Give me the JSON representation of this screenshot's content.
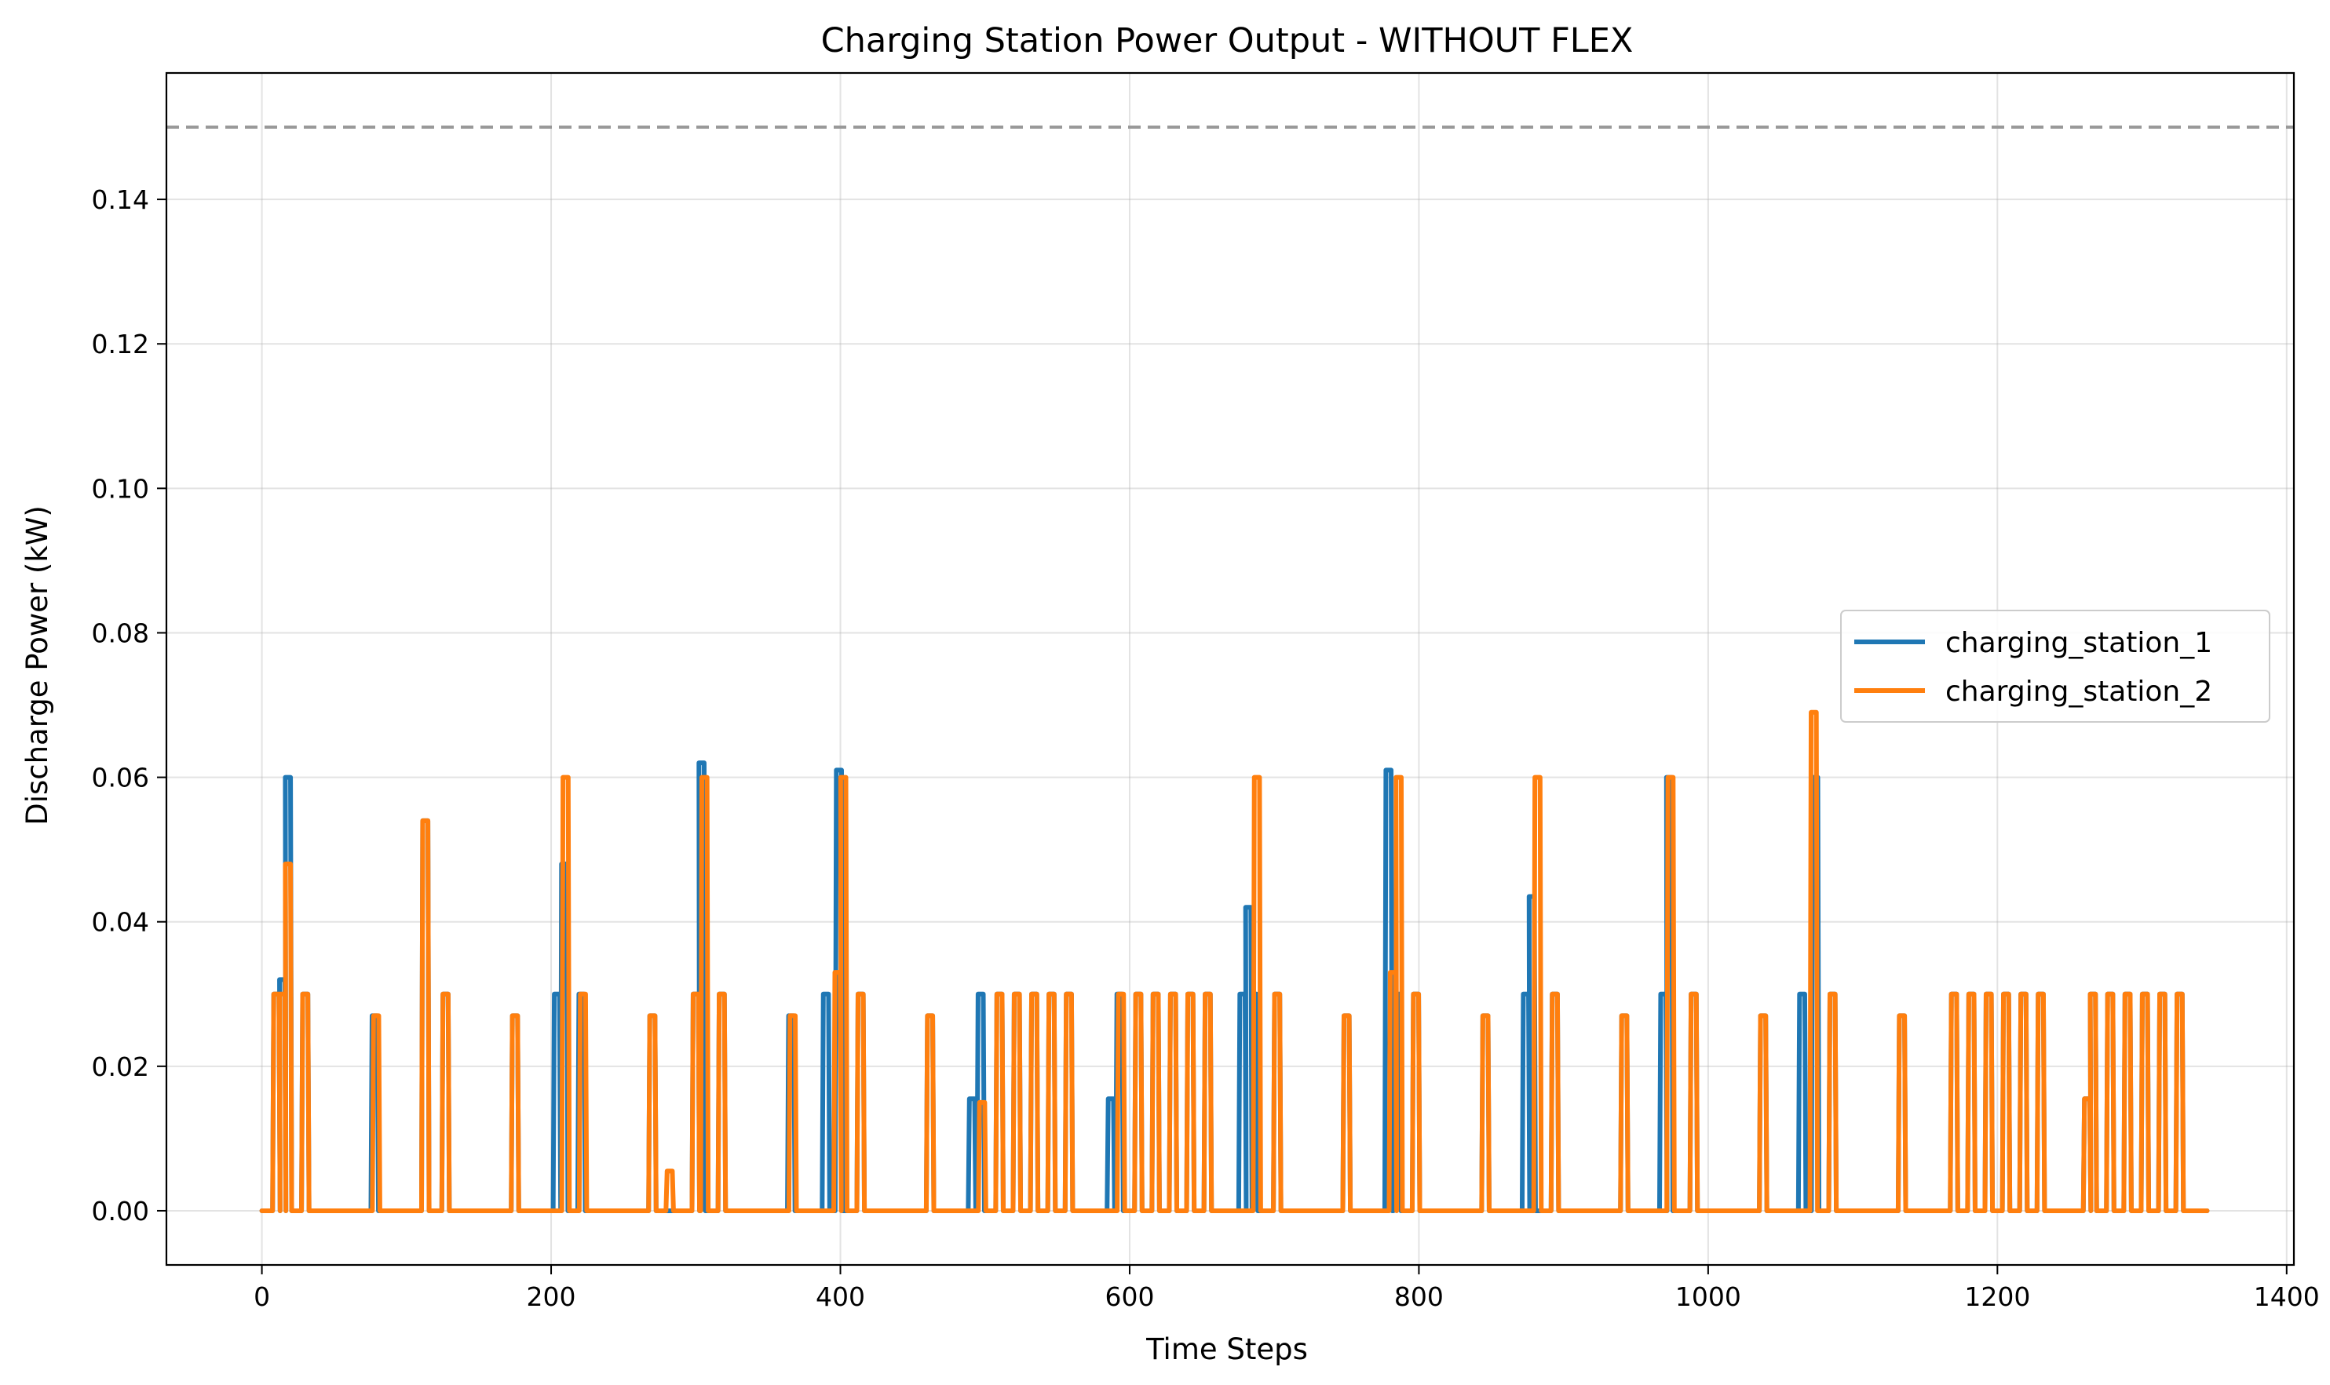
{
  "chart_data": {
    "type": "line",
    "title": "Charging Station Power Output - WITHOUT FLEX",
    "xlabel": "Time Steps",
    "ylabel": "Discharge Power (kW)",
    "xlim": [
      -66,
      1405
    ],
    "ylim": [
      -0.0075,
      0.1575
    ],
    "xticks": [
      0,
      200,
      400,
      600,
      800,
      1000,
      1200,
      1400
    ],
    "yticks": [
      0.0,
      0.02,
      0.04,
      0.06,
      0.08,
      0.1,
      0.12,
      0.14
    ],
    "ytick_labels": [
      "0.00",
      "0.02",
      "0.04",
      "0.06",
      "0.08",
      "0.10",
      "0.12",
      "0.14"
    ],
    "grid": true,
    "legend_placement": "center-right",
    "reference_line": {
      "y": 0.15,
      "style": "dashed",
      "color": "#999999"
    },
    "x_end": 1345,
    "series": [
      {
        "name": "charging_station_1",
        "color": "#1f77b4",
        "spikes": [
          [
            10,
            0.03
          ],
          [
            14,
            0.032
          ],
          [
            18,
            0.06
          ],
          [
            30,
            0.03
          ],
          [
            78,
            0.027
          ],
          [
            113,
            0.054
          ],
          [
            127,
            0.03
          ],
          [
            175,
            0.027
          ],
          [
            204,
            0.03
          ],
          [
            209,
            0.048
          ],
          [
            221,
            0.03
          ],
          [
            270,
            0.027
          ],
          [
            300,
            0.03
          ],
          [
            304,
            0.062
          ],
          [
            318,
            0.03
          ],
          [
            366,
            0.027
          ],
          [
            390,
            0.03
          ],
          [
            399,
            0.061
          ],
          [
            414,
            0.03
          ],
          [
            462,
            0.027
          ],
          [
            491,
            0.0155
          ],
          [
            497,
            0.03
          ],
          [
            510,
            0.03
          ],
          [
            522,
            0.03
          ],
          [
            534,
            0.03
          ],
          [
            546,
            0.03
          ],
          [
            558,
            0.03
          ],
          [
            587,
            0.0155
          ],
          [
            593,
            0.03
          ],
          [
            606,
            0.03
          ],
          [
            618,
            0.03
          ],
          [
            630,
            0.03
          ],
          [
            642,
            0.03
          ],
          [
            654,
            0.03
          ],
          [
            678,
            0.03
          ],
          [
            682,
            0.042
          ],
          [
            686,
            0.03
          ],
          [
            702,
            0.03
          ],
          [
            750,
            0.027
          ],
          [
            779,
            0.061
          ],
          [
            785,
            0.03
          ],
          [
            798,
            0.03
          ],
          [
            846,
            0.027
          ],
          [
            874,
            0.03
          ],
          [
            878,
            0.0435
          ],
          [
            894,
            0.03
          ],
          [
            942,
            0.027
          ],
          [
            969,
            0.03
          ],
          [
            973,
            0.06
          ],
          [
            990,
            0.03
          ],
          [
            1038,
            0.027
          ],
          [
            1065,
            0.03
          ],
          [
            1074,
            0.06
          ],
          [
            1086,
            0.03
          ],
          [
            1134,
            0.027
          ],
          [
            1170,
            0.03
          ],
          [
            1182,
            0.03
          ],
          [
            1194,
            0.03
          ],
          [
            1206,
            0.03
          ],
          [
            1218,
            0.03
          ],
          [
            1230,
            0.03
          ],
          [
            1262,
            0.0155
          ],
          [
            1266,
            0.03
          ],
          [
            1278,
            0.03
          ],
          [
            1290,
            0.03
          ],
          [
            1302,
            0.03
          ],
          [
            1314,
            0.03
          ],
          [
            1326,
            0.03
          ]
        ]
      },
      {
        "name": "charging_station_2",
        "color": "#ff7f0e",
        "spikes": [
          [
            10,
            0.03
          ],
          [
            14,
            0.03
          ],
          [
            18,
            0.048
          ],
          [
            30,
            0.03
          ],
          [
            79,
            0.027
          ],
          [
            113,
            0.054
          ],
          [
            127,
            0.03
          ],
          [
            175,
            0.027
          ],
          [
            210,
            0.06
          ],
          [
            222,
            0.03
          ],
          [
            270,
            0.027
          ],
          [
            282,
            0.0055
          ],
          [
            300,
            0.03
          ],
          [
            306,
            0.06
          ],
          [
            318,
            0.03
          ],
          [
            367,
            0.027
          ],
          [
            398,
            0.033
          ],
          [
            402,
            0.06
          ],
          [
            414,
            0.03
          ],
          [
            462,
            0.027
          ],
          [
            498,
            0.015
          ],
          [
            510,
            0.03
          ],
          [
            522,
            0.03
          ],
          [
            534,
            0.03
          ],
          [
            546,
            0.03
          ],
          [
            558,
            0.03
          ],
          [
            594,
            0.03
          ],
          [
            606,
            0.03
          ],
          [
            618,
            0.03
          ],
          [
            630,
            0.03
          ],
          [
            642,
            0.03
          ],
          [
            654,
            0.03
          ],
          [
            688,
            0.06
          ],
          [
            702,
            0.03
          ],
          [
            750,
            0.027
          ],
          [
            782,
            0.033
          ],
          [
            786,
            0.06
          ],
          [
            798,
            0.03
          ],
          [
            846,
            0.027
          ],
          [
            882,
            0.06
          ],
          [
            894,
            0.03
          ],
          [
            942,
            0.027
          ],
          [
            974,
            0.06
          ],
          [
            990,
            0.03
          ],
          [
            1038,
            0.027
          ],
          [
            1073,
            0.069
          ],
          [
            1086,
            0.03
          ],
          [
            1134,
            0.027
          ],
          [
            1170,
            0.03
          ],
          [
            1182,
            0.03
          ],
          [
            1194,
            0.03
          ],
          [
            1206,
            0.03
          ],
          [
            1218,
            0.03
          ],
          [
            1230,
            0.03
          ],
          [
            1262,
            0.0155
          ],
          [
            1266,
            0.03
          ],
          [
            1278,
            0.03
          ],
          [
            1290,
            0.03
          ],
          [
            1302,
            0.03
          ],
          [
            1314,
            0.03
          ],
          [
            1326,
            0.03
          ]
        ]
      }
    ]
  }
}
